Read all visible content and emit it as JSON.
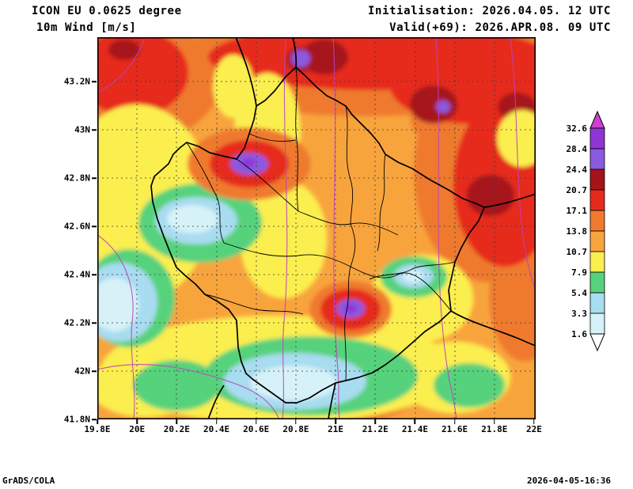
{
  "header": {
    "model": "ICON EU 0.0625 degree",
    "field": "10m Wind [m/s]",
    "init": "Initialisation: 2026.04.05. 12 UTC",
    "valid": "Valid(+69): 2026.APR.08. 09 UTC"
  },
  "footer": {
    "left": "GrADS/COLA",
    "right": "2026-04-05-16:36"
  },
  "axes": {
    "lat_labels": [
      "43.2N",
      "43N",
      "42.8N",
      "42.6N",
      "42.4N",
      "42.2N",
      "42N",
      "41.8N"
    ],
    "lon_labels": [
      "19.8E",
      "20E",
      "20.2E",
      "20.4E",
      "20.6E",
      "20.8E",
      "21E",
      "21.2E",
      "21.4E",
      "21.6E",
      "21.8E",
      "22E"
    ]
  },
  "colorbar": {
    "unit": "m/s",
    "boundary_labels": [
      "32.6",
      "28.4",
      "24.4",
      "20.7",
      "17.1",
      "13.8",
      "10.7",
      "7.9",
      "5.4",
      "3.3",
      "1.6"
    ],
    "band_colors_top_to_bottom": [
      "#8f35d6",
      "#8a5ae0",
      "#a6131a",
      "#e62a1c",
      "#ef7a2f",
      "#f8a43e",
      "#fbee4f",
      "#57d27c",
      "#a8dcf0",
      "#d6f2f8"
    ],
    "arrow_top_color": "#cb41ce",
    "arrow_bottom_color": "#ffffff"
  },
  "palette": {
    "orange": "#f8a43e",
    "darkorange": "#ef7a2f",
    "red": "#e62a1c",
    "darkred": "#a6131a",
    "violet": "#8a5ae0",
    "purple": "#8f35d6",
    "magenta": "#cb41ce",
    "yellow": "#fbee4f",
    "green": "#57d27c",
    "lightblue": "#a8dcf0",
    "paleblue": "#d6f2f8",
    "white": "#ffffff",
    "boundary": "#000000",
    "contour": "#bb44bb",
    "grid": "#3a3a3a"
  }
}
